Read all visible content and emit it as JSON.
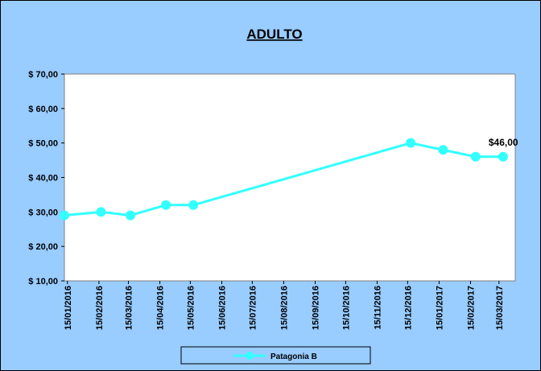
{
  "chart_data": {
    "type": "line",
    "title": "ADULTO",
    "x": [
      "12/01/2016",
      "17/02/2016",
      "17/03/2016",
      "21/04/2016",
      "18/05/2016",
      "18/12/2016",
      "19/01/2017",
      "20/02/2017",
      "19/03/2017"
    ],
    "series": [
      {
        "name": "Patagonia B",
        "color": "#33ffff",
        "values": [
          29,
          30,
          29,
          32,
          32,
          50,
          48,
          46,
          46
        ],
        "value_labels": [
          null,
          null,
          null,
          null,
          null,
          null,
          null,
          null,
          "$46,00"
        ]
      }
    ],
    "xlim": [
      "12/01/2016",
      "31/03/2017"
    ],
    "xticks": [
      "15/01/2016",
      "15/02/2016",
      "15/03/2016",
      "15/04/2016",
      "15/05/2016",
      "15/06/2016",
      "15/07/2016",
      "15/08/2016",
      "15/09/2016",
      "15/10/2016",
      "15/11/2016",
      "15/12/2016",
      "15/01/2017",
      "15/02/2017",
      "15/03/2017"
    ],
    "ylim": [
      10,
      70
    ],
    "yticks": [
      {
        "value": 10,
        "label": "$ 10,00"
      },
      {
        "value": 20,
        "label": "$ 20,00"
      },
      {
        "value": 30,
        "label": "$ 30,00"
      },
      {
        "value": 40,
        "label": "$ 40,00"
      },
      {
        "value": 50,
        "label": "$ 50,00"
      },
      {
        "value": 60,
        "label": "$ 60,00"
      },
      {
        "value": 70,
        "label": "$ 70,00"
      }
    ],
    "legend": "bottom"
  }
}
